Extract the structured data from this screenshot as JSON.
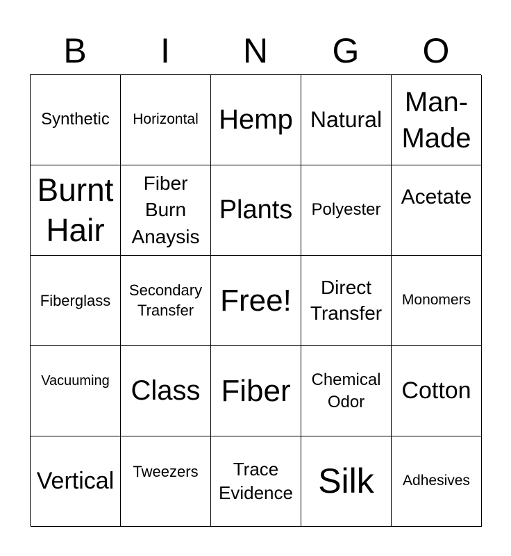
{
  "header": [
    "B",
    "I",
    "N",
    "G",
    "O"
  ],
  "cells": [
    "Synthetic",
    "Horizontal",
    "Hemp",
    "Natural",
    "Man-Made",
    "Burnt Hair",
    "Fiber Burn Anaysis",
    "Plants",
    "Polyester",
    "Acetate",
    "Fiberglass",
    "Secondary Transfer",
    "Free!",
    "Direct Transfer",
    "Monomers",
    "Vacuuming",
    "Class",
    "Fiber",
    "Chemical Odor",
    "Cotton",
    "Vertical",
    "Tweezers",
    "Trace Evidence",
    "Silk",
    "Adhesives"
  ]
}
